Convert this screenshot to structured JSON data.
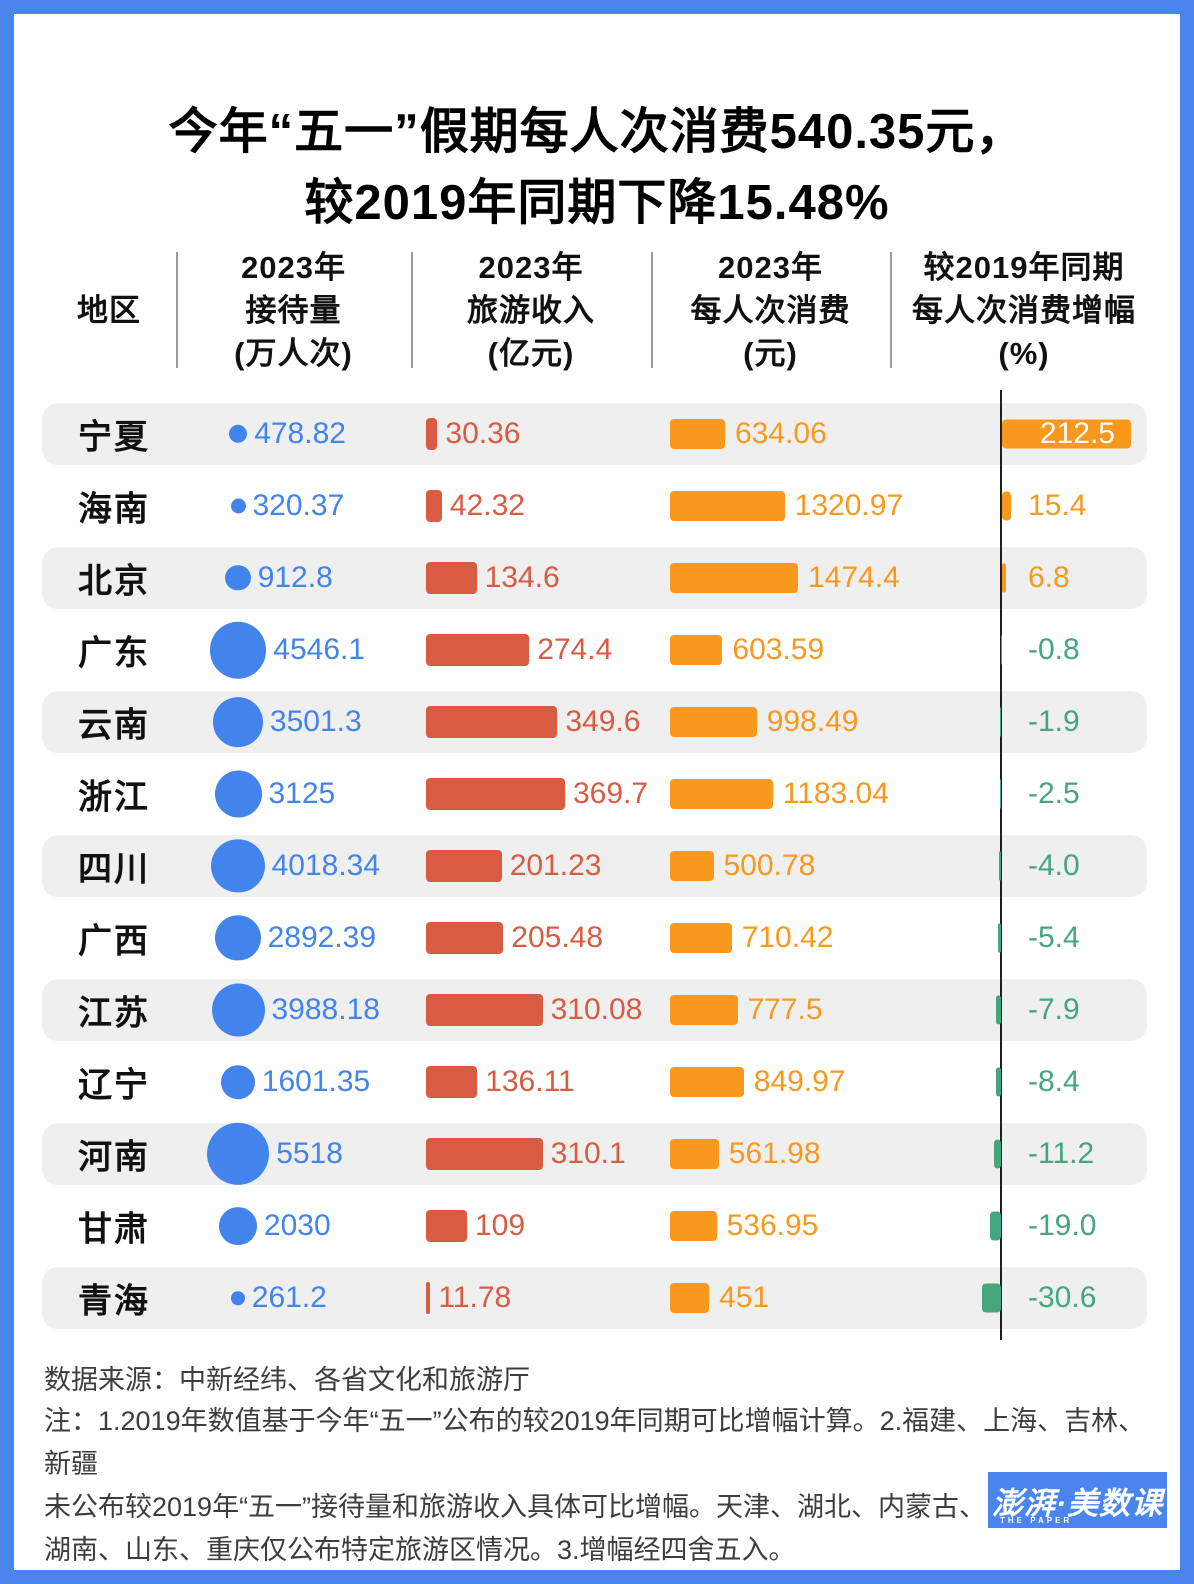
{
  "title": {
    "line1": "今年“五一”假期每人次消费540.35元，",
    "line2": "较2019年同期下降15.48%"
  },
  "table": {
    "region_header": "地区",
    "col1": {
      "l1": "2023年",
      "l2": "接待量",
      "l3": "(万人次)"
    },
    "col2": {
      "l1": "2023年",
      "l2": "旅游收入",
      "l3": "(亿元)"
    },
    "col3": {
      "l1": "2023年",
      "l2": "每人次消费",
      "l3": "(元)"
    },
    "col4": {
      "l1": "较2019年同期",
      "l2": "每人次消费增幅",
      "l3": "(%)"
    }
  },
  "chart_data": {
    "type": "table",
    "title": "今年“五一”假期每人次消费540.35元，较2019年同期下降15.48%",
    "columns": [
      "地区",
      "2023年接待量(万人次)",
      "2023年旅游收入(亿元)",
      "2023年每人次消费(元)",
      "较2019年同期每人次消费增幅(%)"
    ],
    "rows": [
      {
        "region": "宁夏",
        "reception": "478.82",
        "income": "30.36",
        "per_capita": "634.06",
        "change": "212.5"
      },
      {
        "region": "海南",
        "reception": "320.37",
        "income": "42.32",
        "per_capita": "1320.97",
        "change": "15.4"
      },
      {
        "region": "北京",
        "reception": "912.8",
        "income": "134.6",
        "per_capita": "1474.4",
        "change": "6.8"
      },
      {
        "region": "广东",
        "reception": "4546.1",
        "income": "274.4",
        "per_capita": "603.59",
        "change": "-0.8"
      },
      {
        "region": "云南",
        "reception": "3501.3",
        "income": "349.6",
        "per_capita": "998.49",
        "change": "-1.9"
      },
      {
        "region": "浙江",
        "reception": "3125",
        "income": "369.7",
        "per_capita": "1183.04",
        "change": "-2.5"
      },
      {
        "region": "四川",
        "reception": "4018.34",
        "income": "201.23",
        "per_capita": "500.78",
        "change": "-4.0"
      },
      {
        "region": "广西",
        "reception": "2892.39",
        "income": "205.48",
        "per_capita": "710.42",
        "change": "-5.4"
      },
      {
        "region": "江苏",
        "reception": "3988.18",
        "income": "310.08",
        "per_capita": "777.5",
        "change": "-7.9"
      },
      {
        "region": "辽宁",
        "reception": "1601.35",
        "income": "136.11",
        "per_capita": "849.97",
        "change": "-8.4"
      },
      {
        "region": "河南",
        "reception": "5518",
        "income": "310.1",
        "per_capita": "561.98",
        "change": "-11.2"
      },
      {
        "region": "甘肃",
        "reception": "2030",
        "income": "109",
        "per_capita": "536.95",
        "change": "-19.0"
      },
      {
        "region": "青海",
        "reception": "261.2",
        "income": "11.78",
        "per_capita": "451",
        "change": "-30.6"
      }
    ],
    "bubble_note": "接待量以圆面积表示，增幅以零轴左右条形表示",
    "axis_zero_column": "较2019年同期每人次消费增幅(%)"
  },
  "footer": {
    "source": "数据来源：中新经纬、各省文化和旅游厅",
    "note_line1": "注：1.2019年数值基于今年“五一”公布的较2019年同期可比增幅计算。2.福建、上海、吉林、新疆",
    "note_line2": "未公布较2019年“五一”接待量和旅游收入具体可比增幅。天津、湖北、内蒙古、",
    "note_line3": "湖南、山东、重庆仅公布特定旅游区情况。3.增幅经四舍五入。"
  },
  "logo": {
    "text": "澎湃·美数课",
    "subtext": "THE PAPER"
  },
  "colors": {
    "accent_blue": "#4384ec",
    "bar_red": "#d85b42",
    "bar_orange": "#f8991d",
    "bar_green": "#44a57e",
    "frame_blue": "#4a85ee",
    "row_band": "#efefef"
  }
}
